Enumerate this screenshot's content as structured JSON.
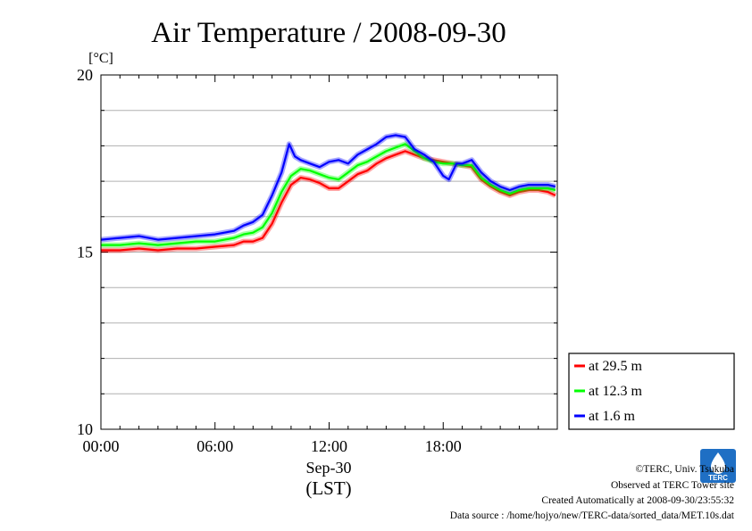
{
  "chart_data": {
    "type": "line",
    "title": "Air Temperature / 2008-09-30",
    "ylabel": "[°C]",
    "xlabel": "(LST)",
    "date_label": "Sep-30",
    "x_unit": "hour of day",
    "xlim": [
      0,
      24
    ],
    "ylim": [
      10,
      20
    ],
    "y_ticks": [
      10,
      15,
      20
    ],
    "y_tick_labels": [
      "10",
      "15",
      "20"
    ],
    "y_grid_step": 1,
    "x_ticks": [
      0,
      6,
      12,
      18
    ],
    "x_tick_labels": [
      "00:00",
      "06:00",
      "12:00",
      "18:00"
    ],
    "grid": true,
    "legend_position": "bottom-right",
    "series": [
      {
        "name": "at 29.5 m",
        "color": "#ff0000",
        "x": [
          0,
          1,
          2,
          3,
          4,
          5,
          6,
          7,
          7.5,
          8,
          8.5,
          9,
          9.5,
          10,
          10.5,
          11,
          11.5,
          12,
          12.5,
          13,
          13.5,
          14,
          14.5,
          15,
          15.5,
          16,
          16.5,
          17,
          17.5,
          18,
          18.5,
          19,
          19.5,
          20,
          20.5,
          21,
          21.5,
          22,
          22.5,
          23,
          23.5,
          23.9
        ],
        "y": [
          15.05,
          15.05,
          15.1,
          15.05,
          15.1,
          15.1,
          15.15,
          15.2,
          15.3,
          15.3,
          15.4,
          15.8,
          16.4,
          16.9,
          17.1,
          17.05,
          16.95,
          16.8,
          16.8,
          17.0,
          17.2,
          17.3,
          17.5,
          17.65,
          17.75,
          17.85,
          17.75,
          17.65,
          17.6,
          17.55,
          17.5,
          17.45,
          17.4,
          17.05,
          16.85,
          16.7,
          16.6,
          16.7,
          16.75,
          16.75,
          16.7,
          16.6
        ]
      },
      {
        "name": "at 12.3 m",
        "color": "#00ff00",
        "x": [
          0,
          1,
          2,
          3,
          4,
          5,
          6,
          7,
          7.5,
          8,
          8.5,
          9,
          9.5,
          10,
          10.5,
          11,
          11.5,
          12,
          12.5,
          13,
          13.5,
          14,
          14.5,
          15,
          15.5,
          16,
          16.5,
          17,
          17.5,
          18,
          18.5,
          19,
          19.5,
          20,
          20.5,
          21,
          21.5,
          22,
          22.5,
          23,
          23.5,
          23.9
        ],
        "y": [
          15.2,
          15.2,
          15.25,
          15.2,
          15.25,
          15.3,
          15.3,
          15.4,
          15.5,
          15.55,
          15.7,
          16.1,
          16.7,
          17.15,
          17.35,
          17.3,
          17.2,
          17.1,
          17.05,
          17.25,
          17.45,
          17.55,
          17.7,
          17.85,
          17.95,
          18.05,
          17.85,
          17.65,
          17.55,
          17.5,
          17.5,
          17.45,
          17.45,
          17.1,
          16.9,
          16.75,
          16.65,
          16.75,
          16.8,
          16.8,
          16.8,
          16.75
        ]
      },
      {
        "name": "at 1.6 m",
        "color": "#0000ff",
        "x": [
          0,
          1,
          2,
          3,
          4,
          5,
          6,
          7,
          7.5,
          8,
          8.5,
          9,
          9.5,
          9.9,
          10.2,
          10.5,
          11,
          11.5,
          12,
          12.5,
          13,
          13.5,
          14,
          14.5,
          15,
          15.5,
          16,
          16.5,
          17,
          17.5,
          18,
          18.3,
          18.7,
          19,
          19.5,
          20,
          20.5,
          21,
          21.5,
          22,
          22.5,
          23,
          23.5,
          23.9
        ],
        "y": [
          15.35,
          15.4,
          15.45,
          15.35,
          15.4,
          15.45,
          15.5,
          15.6,
          15.75,
          15.85,
          16.05,
          16.6,
          17.25,
          18.05,
          17.7,
          17.6,
          17.5,
          17.4,
          17.55,
          17.6,
          17.5,
          17.75,
          17.9,
          18.05,
          18.25,
          18.3,
          18.25,
          17.9,
          17.75,
          17.55,
          17.15,
          17.05,
          17.5,
          17.5,
          17.6,
          17.25,
          17.0,
          16.85,
          16.75,
          16.85,
          16.9,
          16.9,
          16.9,
          16.85
        ]
      }
    ]
  },
  "footer": {
    "copyright": "©TERC, Univ. Tsukuba",
    "observed": "Observed at TERC Tower site",
    "created": "Created Automatically at 2008-09-30/23:55:32",
    "source": "Data source : /home/hojyo/new/TERC-data/sorted_data/MET.10s.dat"
  },
  "logo": {
    "text": "TERC",
    "color": "#1f6fc4"
  }
}
